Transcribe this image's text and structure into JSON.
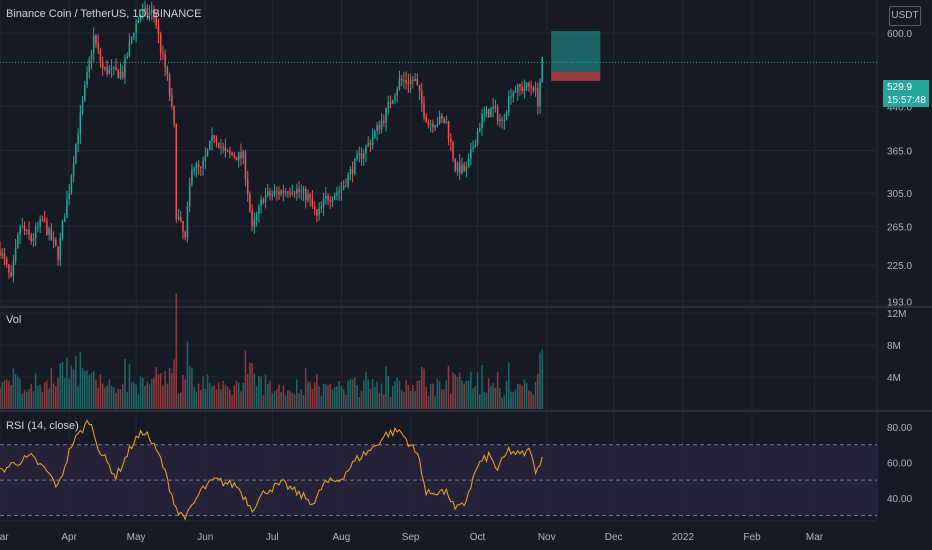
{
  "header": {
    "title": "Binance Coin / TetherUS, 1D, BINANCE"
  },
  "price_axis": {
    "currency": "USDT",
    "last_price": "529.9",
    "countdown": "15:57:48"
  },
  "volume_pane": {
    "label": "Vol"
  },
  "rsi_pane": {
    "label": "RSI (14, close)"
  },
  "colors": {
    "up": "#26a69a",
    "down": "#ef5350",
    "rsi": "#f5a623",
    "rsi_band": "#2a2540",
    "background": "#161a25",
    "grid": "#232733"
  },
  "chart_data": {
    "type": "candlestick",
    "price": {
      "scale": "log",
      "ylim": [
        190,
        690
      ],
      "ticks": [
        "600.0",
        "440.0",
        "365.0",
        "305.0",
        "265.0",
        "225.0",
        "193.0"
      ],
      "tick_values": [
        600,
        440,
        365,
        305,
        265,
        225,
        193
      ],
      "anchors": [
        [
          "2021-03-01",
          240
        ],
        [
          "2021-03-06",
          210
        ],
        [
          "2021-03-10",
          265
        ],
        [
          "2021-03-15",
          250
        ],
        [
          "2021-03-20",
          272
        ],
        [
          "2021-03-27",
          235
        ],
        [
          "2021-04-01",
          310
        ],
        [
          "2021-04-06",
          420
        ],
        [
          "2021-04-09",
          500
        ],
        [
          "2021-04-12",
          590
        ],
        [
          "2021-04-16",
          515
        ],
        [
          "2021-04-20",
          510
        ],
        [
          "2021-04-25",
          505
        ],
        [
          "2021-04-30",
          610
        ],
        [
          "2021-05-03",
          650
        ],
        [
          "2021-05-09",
          655
        ],
        [
          "2021-05-12",
          560
        ],
        [
          "2021-05-15",
          495
        ],
        [
          "2021-05-18",
          400
        ],
        [
          "2021-05-19",
          280
        ],
        [
          "2021-05-23",
          250
        ],
        [
          "2021-05-26",
          345
        ],
        [
          "2021-05-30",
          335
        ],
        [
          "2021-06-05",
          390
        ],
        [
          "2021-06-10",
          360
        ],
        [
          "2021-06-18",
          355
        ],
        [
          "2021-06-22",
          260
        ],
        [
          "2021-06-27",
          300
        ],
        [
          "2021-07-03",
          305
        ],
        [
          "2021-07-10",
          312
        ],
        [
          "2021-07-17",
          300
        ],
        [
          "2021-07-21",
          275
        ],
        [
          "2021-07-25",
          298
        ],
        [
          "2021-08-01",
          310
        ],
        [
          "2021-08-07",
          345
        ],
        [
          "2021-08-14",
          380
        ],
        [
          "2021-08-20",
          420
        ],
        [
          "2021-08-27",
          490
        ],
        [
          "2021-09-03",
          490
        ],
        [
          "2021-09-07",
          430
        ],
        [
          "2021-09-09",
          410
        ],
        [
          "2021-09-14",
          415
        ],
        [
          "2021-09-17",
          410
        ],
        [
          "2021-09-21",
          340
        ],
        [
          "2021-09-26",
          335
        ],
        [
          "2021-10-03",
          420
        ],
        [
          "2021-10-08",
          435
        ],
        [
          "2021-10-12",
          410
        ],
        [
          "2021-10-16",
          470
        ],
        [
          "2021-10-20",
          475
        ],
        [
          "2021-10-26",
          480
        ],
        [
          "2021-10-28",
          450
        ],
        [
          "2021-10-30",
          530
        ]
      ]
    },
    "position": {
      "entry": 510,
      "target": 605,
      "stop": 490,
      "start": "2021-11-03",
      "end": "2021-11-25"
    },
    "volume": {
      "ticks": [
        "12M",
        "8M",
        "4M"
      ],
      "tick_values": [
        12000000,
        8000000,
        4000000
      ],
      "ylim": [
        0,
        12500000
      ]
    },
    "rsi": {
      "ticks": [
        "80.00",
        "60.00",
        "40.00"
      ],
      "tick_values": [
        80,
        60,
        40
      ],
      "ylim": [
        28,
        88
      ],
      "upper_band": 70,
      "lower_band": 30,
      "mid": 50,
      "anchors": [
        [
          "2021-03-01",
          55
        ],
        [
          "2021-03-08",
          60
        ],
        [
          "2021-03-15",
          63
        ],
        [
          "2021-03-22",
          55
        ],
        [
          "2021-03-27",
          46
        ],
        [
          "2021-04-02",
          70
        ],
        [
          "2021-04-10",
          84
        ],
        [
          "2021-04-15",
          66
        ],
        [
          "2021-04-22",
          52
        ],
        [
          "2021-04-30",
          72
        ],
        [
          "2021-05-05",
          78
        ],
        [
          "2021-05-12",
          62
        ],
        [
          "2021-05-17",
          42
        ],
        [
          "2021-05-20",
          31
        ],
        [
          "2021-05-24",
          30
        ],
        [
          "2021-05-30",
          44
        ],
        [
          "2021-06-05",
          50
        ],
        [
          "2021-06-15",
          47
        ],
        [
          "2021-06-22",
          34
        ],
        [
          "2021-06-28",
          44
        ],
        [
          "2021-07-06",
          48
        ],
        [
          "2021-07-13",
          42
        ],
        [
          "2021-07-20",
          37
        ],
        [
          "2021-07-24",
          48
        ],
        [
          "2021-07-31",
          50
        ],
        [
          "2021-08-08",
          62
        ],
        [
          "2021-08-15",
          68
        ],
        [
          "2021-08-21",
          76
        ],
        [
          "2021-08-27",
          78
        ],
        [
          "2021-09-01",
          70
        ],
        [
          "2021-09-05",
          62
        ],
        [
          "2021-09-08",
          42
        ],
        [
          "2021-09-14",
          44
        ],
        [
          "2021-09-18",
          42
        ],
        [
          "2021-09-21",
          33
        ],
        [
          "2021-09-25",
          36
        ],
        [
          "2021-10-01",
          58
        ],
        [
          "2021-10-06",
          64
        ],
        [
          "2021-10-10",
          56
        ],
        [
          "2021-10-15",
          67
        ],
        [
          "2021-10-20",
          64
        ],
        [
          "2021-10-25",
          67
        ],
        [
          "2021-10-27",
          52
        ],
        [
          "2021-10-30",
          65
        ]
      ]
    },
    "x_axis": {
      "ticks": [
        [
          "2021-03-01",
          "Mar"
        ],
        [
          "2021-04-01",
          "Apr"
        ],
        [
          "2021-05-01",
          "May"
        ],
        [
          "2021-06-01",
          "Jun"
        ],
        [
          "2021-07-01",
          "Jul"
        ],
        [
          "2021-08-01",
          "Aug"
        ],
        [
          "2021-09-01",
          "Sep"
        ],
        [
          "2021-10-01",
          "Oct"
        ],
        [
          "2021-11-01",
          "Nov"
        ],
        [
          "2021-12-01",
          "Dec"
        ],
        [
          "2022-01-01",
          "2022"
        ],
        [
          "2022-02-01",
          "Feb"
        ],
        [
          "2022-03-01",
          "Mar"
        ]
      ],
      "range": [
        "2021-03-01",
        "2022-03-29"
      ]
    }
  }
}
